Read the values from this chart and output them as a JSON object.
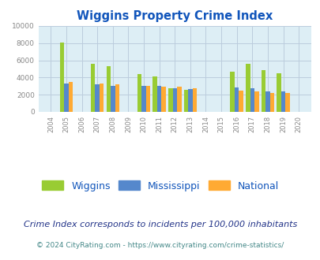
{
  "title": "Wiggins Property Crime Index",
  "years": [
    2004,
    2005,
    2006,
    2007,
    2008,
    2009,
    2010,
    2011,
    2012,
    2013,
    2014,
    2015,
    2016,
    2017,
    2018,
    2019,
    2020
  ],
  "wiggins": [
    null,
    8050,
    null,
    5550,
    5300,
    null,
    4400,
    4150,
    2750,
    2600,
    null,
    null,
    4700,
    5600,
    4850,
    4450,
    null
  ],
  "mississippi": [
    null,
    3300,
    null,
    3250,
    3000,
    null,
    3000,
    3050,
    2750,
    2650,
    null,
    null,
    2800,
    2700,
    2350,
    2350,
    null
  ],
  "national": [
    null,
    3450,
    null,
    3300,
    3250,
    null,
    3000,
    2900,
    2900,
    2700,
    null,
    null,
    2500,
    2400,
    2200,
    2150,
    null
  ],
  "wiggins_color": "#99cc33",
  "mississippi_color": "#5588cc",
  "national_color": "#ffaa33",
  "bg_color": "#ddeef5",
  "ylim": [
    0,
    10000
  ],
  "yticks": [
    0,
    2000,
    4000,
    6000,
    8000,
    10000
  ],
  "bar_width": 0.28,
  "subtitle": "Crime Index corresponds to incidents per 100,000 inhabitants",
  "footer": "© 2024 CityRating.com - https://www.cityrating.com/crime-statistics/",
  "legend_labels": [
    "Wiggins",
    "Mississippi",
    "National"
  ],
  "title_color": "#1155bb",
  "subtitle_color": "#223388",
  "footer_color": "#448888",
  "tick_color": "#888888",
  "grid_color": "#bbccdd",
  "axis_label_color": "#888888"
}
